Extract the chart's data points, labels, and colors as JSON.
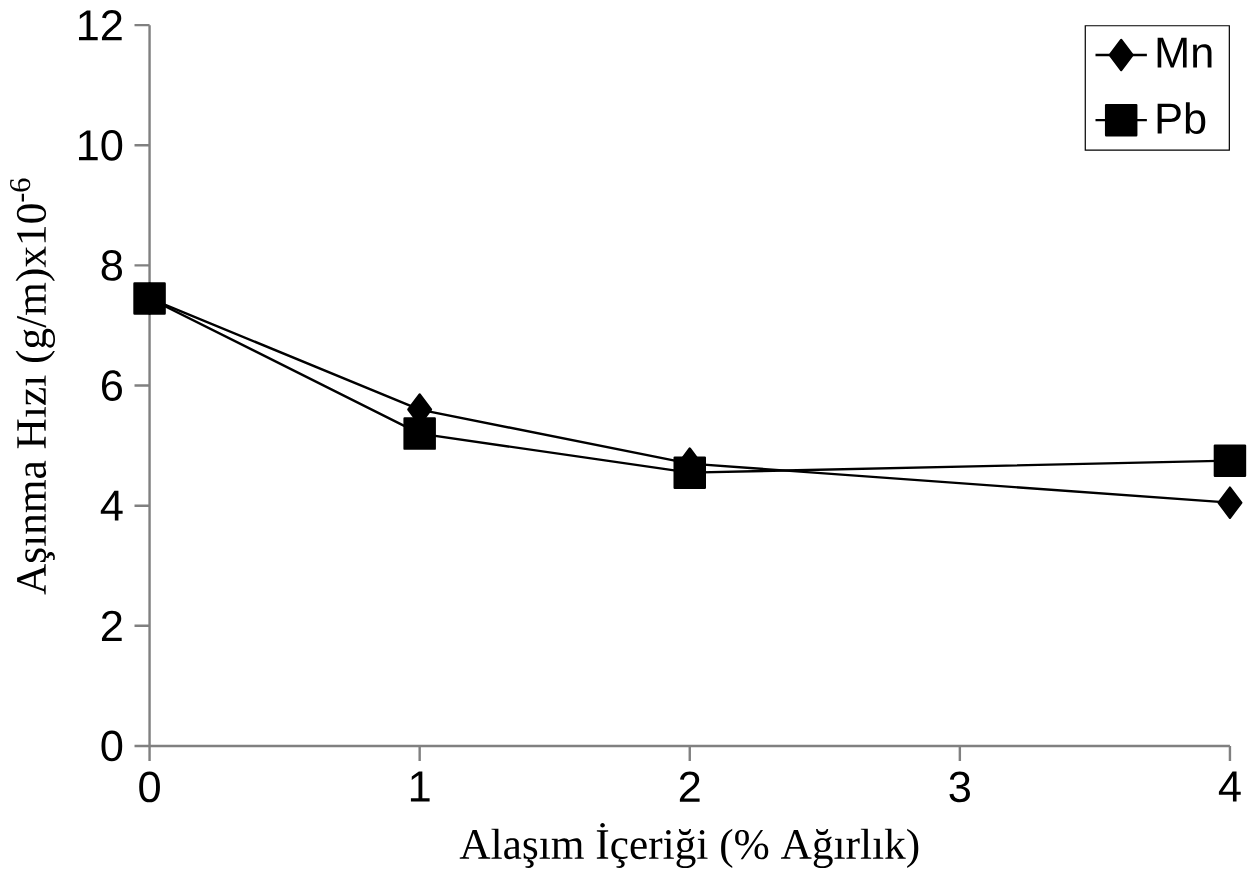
{
  "chart_data": {
    "type": "line",
    "xlabel": "Alaşım İçeriği (% Ağırlık)",
    "ylabel": "Aşınma Hızı (g/m)x10$^{-6}$",
    "x": [
      0,
      1,
      2,
      4
    ],
    "series": [
      {
        "name": "Mn",
        "color": "#000000",
        "marker": "diamond",
        "values": [
          7.45,
          5.6,
          4.7,
          4.05
        ]
      },
      {
        "name": "Pb",
        "color": "#000000",
        "marker": "square",
        "values": [
          7.45,
          5.2,
          4.55,
          4.75
        ]
      }
    ],
    "xlim": [
      0,
      4
    ],
    "xticks": [
      0,
      1,
      2,
      3,
      4
    ],
    "ylim": [
      0,
      12
    ],
    "yticks": [
      0,
      2,
      4,
      6,
      8,
      10,
      12
    ],
    "grid": false,
    "legend": "top right",
    "line_style": "solid"
  }
}
